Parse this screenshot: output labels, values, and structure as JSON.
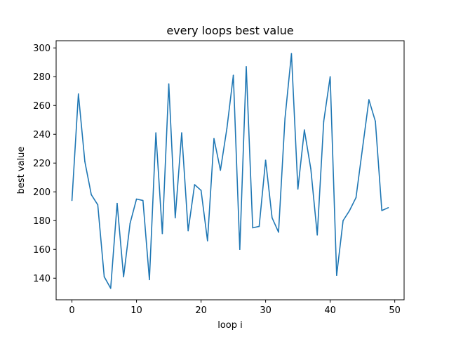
{
  "chart_data": {
    "type": "line",
    "title": "every loops best value",
    "xlabel": "loop i",
    "ylabel": "best value",
    "xlim": [
      -2.45,
      51.45
    ],
    "ylim": [
      125,
      305
    ],
    "xticks": [
      0,
      10,
      20,
      30,
      40,
      50
    ],
    "yticks": [
      140,
      160,
      180,
      200,
      220,
      240,
      260,
      280,
      300
    ],
    "grid": false,
    "legend": null,
    "series": [
      {
        "color": "#1f77b4",
        "x": [
          0,
          1,
          2,
          3,
          4,
          5,
          6,
          7,
          8,
          9,
          10,
          11,
          12,
          13,
          14,
          15,
          16,
          17,
          18,
          19,
          20,
          21,
          22,
          23,
          24,
          25,
          26,
          27,
          28,
          29,
          30,
          31,
          32,
          33,
          34,
          35,
          36,
          37,
          38,
          39,
          40,
          41,
          42,
          43,
          44,
          45,
          46,
          47,
          48,
          49
        ],
        "y": [
          194,
          268,
          221,
          198,
          191,
          141,
          133,
          192,
          141,
          178,
          195,
          194,
          139,
          241,
          171,
          275,
          182,
          241,
          173,
          205,
          201,
          166,
          237,
          215,
          244,
          281,
          160,
          287,
          175,
          176,
          222,
          182,
          172,
          251,
          296,
          202,
          243,
          216,
          170,
          249,
          280,
          142,
          180,
          187,
          196,
          230,
          264,
          249,
          187,
          189
        ]
      }
    ]
  }
}
